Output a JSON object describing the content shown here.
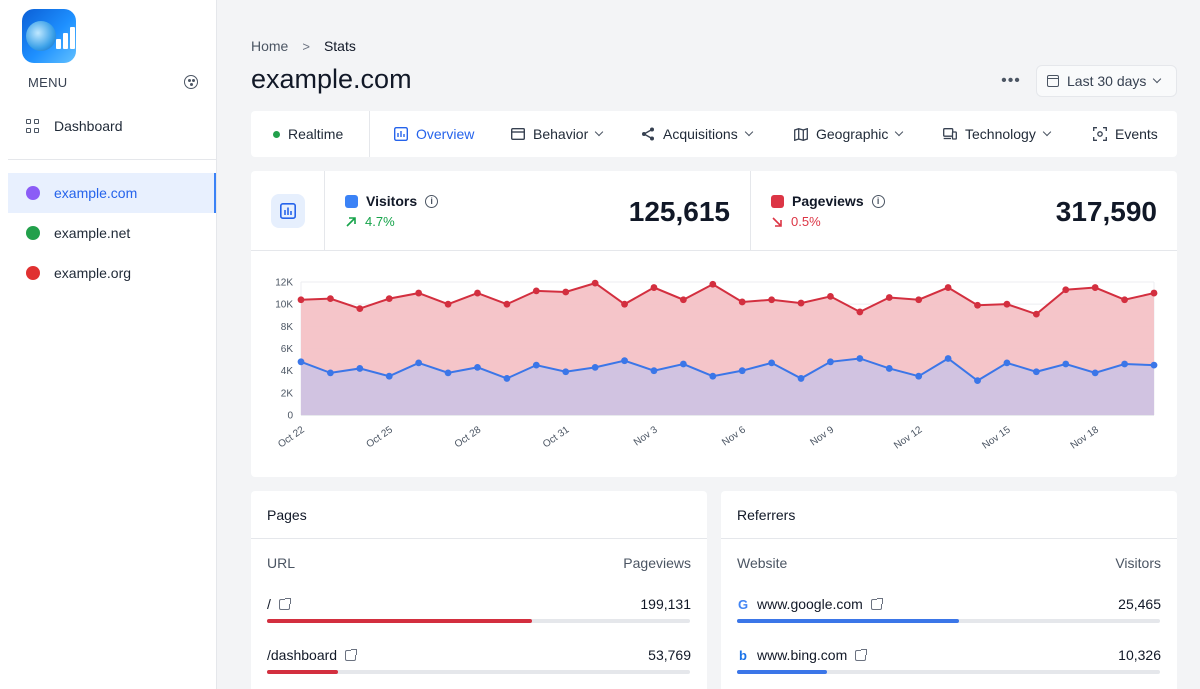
{
  "sidebar": {
    "menu_label": "MENU",
    "dashboard_label": "Dashboard",
    "sites": [
      {
        "label": "example.com",
        "color": "#8b5cf6",
        "active": true
      },
      {
        "label": "example.net",
        "color": "#22a04b",
        "active": false
      },
      {
        "label": "example.org",
        "color": "#e03131",
        "active": false
      }
    ]
  },
  "header": {
    "breadcrumb": [
      "Home",
      "Stats"
    ],
    "title": "example.com",
    "more_label": "•••",
    "date_range": "Last 30 days"
  },
  "tabs": [
    {
      "label": "Realtime",
      "icon": "green-dot-icon"
    },
    {
      "label": "Overview",
      "icon": "bar-chart-icon",
      "selected": true
    },
    {
      "label": "Behavior",
      "icon": "browser-window-icon",
      "dropdown": true
    },
    {
      "label": "Acquisitions",
      "icon": "share-nodes-icon",
      "dropdown": true
    },
    {
      "label": "Geographic",
      "icon": "map-icon",
      "dropdown": true
    },
    {
      "label": "Technology",
      "icon": "devices-icon",
      "dropdown": true
    },
    {
      "label": "Events",
      "icon": "focus-target-icon"
    }
  ],
  "metrics": {
    "visitors": {
      "label": "Visitors",
      "change": "4.7%",
      "direction": "up",
      "value": "125,615",
      "color": "#3b82f6",
      "change_color": "#16a34a"
    },
    "pageviews": {
      "label": "Pageviews",
      "change": "0.5%",
      "direction": "down",
      "value": "317,590",
      "color": "#dc3545",
      "change_color": "#dc3545"
    }
  },
  "chart_data": {
    "type": "area",
    "x_tick_labels": [
      "Oct 22",
      "Oct 25",
      "Oct 28",
      "Oct 31",
      "Nov 3",
      "Nov 6",
      "Nov 9",
      "Nov 12",
      "Nov 15",
      "Nov 18"
    ],
    "y_tick_labels": [
      "0",
      "2K",
      "4K",
      "6K",
      "8K",
      "10K",
      "12K"
    ],
    "ylim": [
      0,
      12000
    ],
    "grid": true,
    "series": [
      {
        "name": "Pageviews",
        "color": "#d32f3f",
        "fill": "#f4c2c6",
        "values": [
          10400,
          10500,
          9600,
          10500,
          11000,
          10000,
          11000,
          10000,
          11200,
          11100,
          11900,
          10000,
          11500,
          10400,
          11800,
          10200,
          10400,
          10100,
          10700,
          9300,
          10600,
          10400,
          11500,
          9900,
          10000,
          9100,
          11300,
          11500,
          10400,
          11000
        ]
      },
      {
        "name": "Visitors",
        "color": "#3b76e8",
        "fill": "#cfc3e3",
        "values": [
          4800,
          3800,
          4200,
          3500,
          4700,
          3800,
          4300,
          3300,
          4500,
          3900,
          4300,
          4900,
          4000,
          4600,
          3500,
          4000,
          4700,
          3300,
          4800,
          5100,
          4200,
          3500,
          5100,
          3100,
          4700,
          3900,
          4600,
          3800,
          4600,
          4500
        ]
      }
    ]
  },
  "pages_panel": {
    "title": "Pages",
    "col_left": "URL",
    "col_right": "Pageviews",
    "rows": [
      {
        "label": "/",
        "value": "199,131",
        "share": 0.627
      },
      {
        "label": "/dashboard",
        "value": "53,769",
        "share": 0.169
      }
    ],
    "bar_color": "#d32f3f"
  },
  "referrers_panel": {
    "title": "Referrers",
    "col_left": "Website",
    "col_right": "Visitors",
    "rows": [
      {
        "label": "www.google.com",
        "value": "25,465",
        "share": 0.524,
        "icon": "google-icon",
        "glyph": "G"
      },
      {
        "label": "www.bing.com",
        "value": "10,326",
        "share": 0.212,
        "icon": "bing-icon",
        "glyph": "b"
      }
    ],
    "bar_color": "#3b76e8"
  }
}
